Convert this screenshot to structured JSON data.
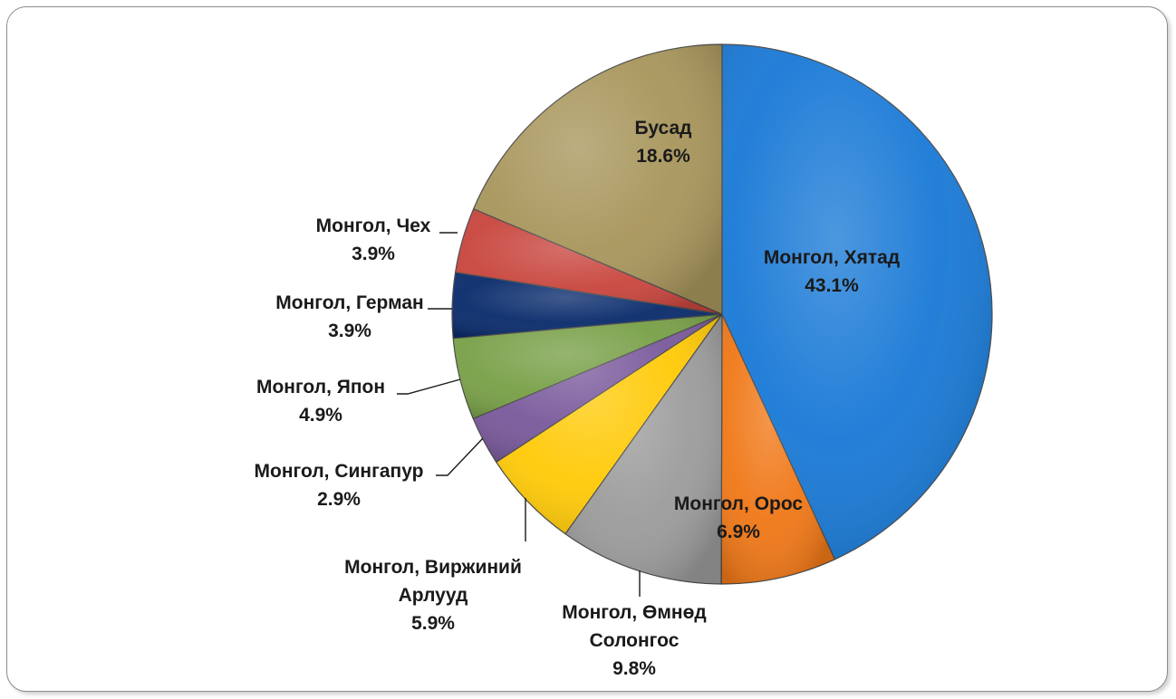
{
  "chart_data": {
    "type": "pie",
    "title": "",
    "slices": [
      {
        "name": "Монгол, Хятад",
        "value": 43.1,
        "label_lines": [
          "Монгол, Хятад"
        ],
        "value_label": "43.1%",
        "color": "#1a7ad6"
      },
      {
        "name": "Монгол, Орос",
        "value": 6.9,
        "label_lines": [
          "Монгол, Орос"
        ],
        "value_label": "6.9%",
        "color": "#f07818"
      },
      {
        "name": "Монгол, Өмнөд Солонгос",
        "value": 9.8,
        "label_lines": [
          "Монгол, Өмнөд",
          "Солонгос"
        ],
        "value_label": "9.8%",
        "color": "#9c9c9c"
      },
      {
        "name": "Монгол, Виржиний Арлууд",
        "value": 5.9,
        "label_lines": [
          "Монгол, Виржиний",
          "Арлууд"
        ],
        "value_label": "5.9%",
        "color": "#ffca08"
      },
      {
        "name": "Монгол, Сингапур",
        "value": 2.9,
        "label_lines": [
          "Монгол, Сингапур"
        ],
        "value_label": "2.9%",
        "color": "#7a5a9c"
      },
      {
        "name": "Монгол, Япон",
        "value": 4.9,
        "label_lines": [
          "Монгол, Япон"
        ],
        "value_label": "4.9%",
        "color": "#78a048"
      },
      {
        "name": "Монгол, Герман",
        "value": 3.9,
        "label_lines": [
          "Монгол, Герман"
        ],
        "value_label": "3.9%",
        "color": "#0a2c6c"
      },
      {
        "name": "Монгол, Чех",
        "value": 3.9,
        "label_lines": [
          "Монгол, Чех"
        ],
        "value_label": "3.9%",
        "color": "#c8463e"
      },
      {
        "name": "Бусад",
        "value": 18.6,
        "label_lines": [
          "Бусад"
        ],
        "value_label": "18.6%",
        "color": "#a8965c"
      }
    ],
    "start_angle": "12 o'clock",
    "direction": "clockwise",
    "legend": "none"
  }
}
